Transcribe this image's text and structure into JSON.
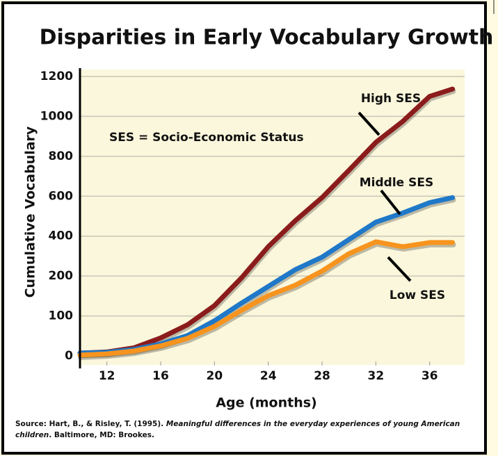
{
  "chart_data": {
    "type": "line",
    "title": "Disparities in Early Vocabulary Growth",
    "xlabel": "Age (months)",
    "ylabel": "Cumulative Vocabulary",
    "x": [
      10,
      12,
      14,
      16,
      18,
      20,
      22,
      24,
      26,
      28,
      30,
      32,
      34,
      36,
      37.7
    ],
    "series": [
      {
        "name": "High SES",
        "color": "#8b1c1c",
        "values": [
          7,
          10,
          20,
          45,
          78,
          126,
          195,
          347,
          477,
          593,
          730,
          870,
          975,
          1100,
          1137
        ]
      },
      {
        "name": "Middle SES",
        "color": "#1f78c8",
        "values": [
          7,
          9,
          16,
          30,
          51,
          88,
          132,
          174,
          232,
          295,
          383,
          470,
          516,
          568,
          593
        ]
      },
      {
        "name": "Low SES",
        "color": "#f7941e",
        "values": [
          2,
          5,
          12,
          25,
          44,
          74,
          114,
          151,
          177,
          225,
          312,
          372,
          347,
          368,
          368
        ]
      }
    ],
    "annotation": "SES = Socio-Economic Status",
    "xlim": [
      10,
      38.6
    ],
    "xticks": [
      12,
      16,
      20,
      24,
      28,
      32,
      36
    ],
    "ylim": [
      0,
      1200
    ],
    "yticks": [
      0,
      100,
      200,
      400,
      600,
      800,
      1000,
      1200
    ],
    "grid": true,
    "source": {
      "prefix": "Source: Hart, B., & Risley, T. (1995). ",
      "title": "Meaningful differences in the everyday experiences of young American children",
      "suffix": ". Baltimore, MD: Brookes."
    }
  }
}
